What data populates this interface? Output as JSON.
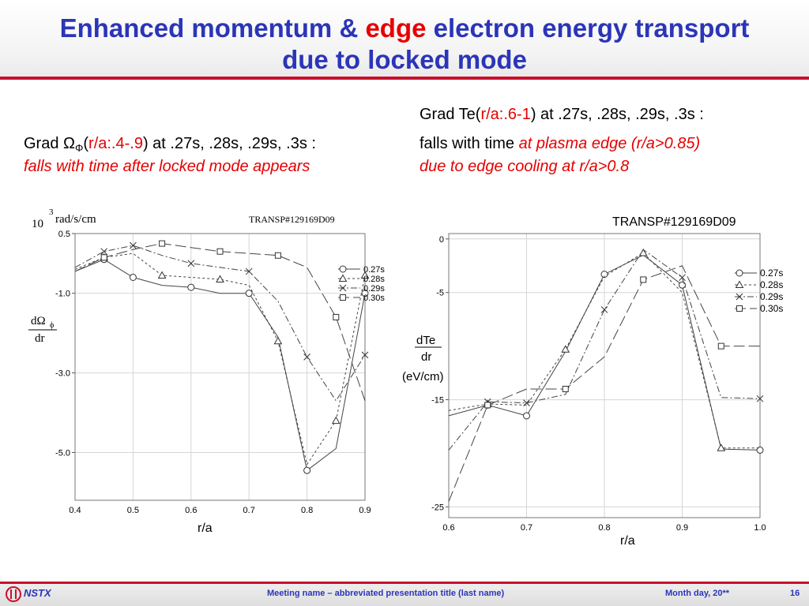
{
  "title": {
    "line1_pre": "Enhanced momentum & ",
    "line1_red": "edge",
    "line1_post": " electron energy transport",
    "line2": "due to locked mode"
  },
  "left_text": {
    "pre": "Grad Ω",
    "sub": "Φ",
    "paren_open": "(",
    "range": "r/a:.4-.9",
    "post": ") at .27s, .28s, .29s, .3s :",
    "line2": "falls with time after locked mode appears"
  },
  "right_text": {
    "pre": "Grad Te(",
    "range": "r/a:.6-1",
    "post": ") at .27s, .28s, .29s, .3s :",
    "line2_pre": "falls with time ",
    "line2_red": "at plasma edge (r/a>0.85)",
    "line3": "due to edge cooling at r/a>0.8"
  },
  "footer": {
    "logo": "NSTX",
    "meeting": "Meeting name  – abbreviated presentation title (last name)",
    "date": "Month day, 20**",
    "page": "16"
  },
  "colors": {
    "title_blue": "#2b35b8",
    "accent_red": "#c8102e",
    "highlight_red": "#e60000"
  },
  "chart_data": [
    {
      "type": "line",
      "label": "TRANSP#129169D09",
      "yunit_exp": "3",
      "yunit_pre": "10",
      "yunit_post": "rad/s/cm",
      "ylabel_num": "dΩ",
      "ylabel_sub": "ϕ",
      "ylabel_den": "dr",
      "xlabel": "r/a",
      "xlim": [
        0.4,
        0.9
      ],
      "ylim": [
        -6.2,
        0.5
      ],
      "x_ticks": [
        0.4,
        0.5,
        0.6,
        0.7,
        0.8,
        0.9
      ],
      "y_ticks": [
        0.5,
        -1.0,
        -3.0,
        -5.0
      ],
      "y_tick_labels": [
        "0.5",
        "-1.0",
        "-3.0",
        "-5.0"
      ],
      "x_tick_labels": [
        "0.4",
        "0.5",
        "0.6",
        "0.7",
        "0.8",
        "0.9"
      ],
      "series": [
        {
          "name": "0.27s",
          "marker": "circle",
          "dash": "none",
          "x": [
            0.4,
            0.45,
            0.5,
            0.55,
            0.6,
            0.65,
            0.7,
            0.75,
            0.8,
            0.85,
            0.9
          ],
          "y": [
            -0.45,
            -0.15,
            -0.6,
            -0.8,
            -0.85,
            -1.0,
            -1.0,
            -2.1,
            -5.45,
            -4.9,
            -1.0
          ],
          "mx": [
            0.45,
            0.5,
            0.6,
            0.7,
            0.8,
            0.9
          ]
        },
        {
          "name": "0.28s",
          "marker": "triangle",
          "dash": "3,3",
          "x": [
            0.4,
            0.45,
            0.5,
            0.55,
            0.6,
            0.65,
            0.7,
            0.75,
            0.8,
            0.85,
            0.9
          ],
          "y": [
            -0.4,
            -0.1,
            0.0,
            -0.55,
            -0.6,
            -0.65,
            -0.8,
            -2.2,
            -5.3,
            -4.2,
            -0.55
          ],
          "mx": [
            0.45,
            0.55,
            0.65,
            0.75,
            0.85,
            0.9
          ]
        },
        {
          "name": "0.29s",
          "marker": "x",
          "dash": "8,3,2,3",
          "x": [
            0.4,
            0.45,
            0.5,
            0.55,
            0.6,
            0.65,
            0.7,
            0.75,
            0.8,
            0.85,
            0.9
          ],
          "y": [
            -0.35,
            0.05,
            0.2,
            -0.05,
            -0.25,
            -0.35,
            -0.45,
            -1.2,
            -2.6,
            -3.7,
            -2.55
          ],
          "mx": [
            0.45,
            0.5,
            0.6,
            0.7,
            0.8,
            0.9
          ]
        },
        {
          "name": "0.30s",
          "marker": "square",
          "dash": "14,5",
          "x": [
            0.4,
            0.45,
            0.5,
            0.55,
            0.6,
            0.65,
            0.7,
            0.75,
            0.8,
            0.85,
            0.9
          ],
          "y": [
            -0.45,
            -0.1,
            0.1,
            0.25,
            0.15,
            0.05,
            0.0,
            -0.05,
            -0.35,
            -1.6,
            -3.7
          ],
          "mx": [
            0.45,
            0.55,
            0.65,
            0.75,
            0.85
          ]
        }
      ]
    },
    {
      "type": "line",
      "label": "TRANSP#129169D09",
      "ylabel_num": "dTe",
      "ylabel_den": "dr",
      "ylabel_unit": "(eV/cm)",
      "xlabel": "r/a",
      "xlim": [
        0.6,
        1.0
      ],
      "ylim": [
        -26,
        0.5
      ],
      "x_ticks": [
        0.6,
        0.7,
        0.8,
        0.9,
        1.0
      ],
      "x_tick_labels": [
        "0.6",
        "0.7",
        "0.8",
        "0.9",
        "1.0"
      ],
      "y_ticks": [
        0,
        -5,
        -15,
        -25
      ],
      "y_tick_labels": [
        "0",
        "-5",
        "-15",
        "-25"
      ],
      "series": [
        {
          "name": "0.27s",
          "marker": "circle",
          "dash": "none",
          "x": [
            0.6,
            0.65,
            0.7,
            0.75,
            0.8,
            0.85,
            0.9,
            0.95,
            1.0
          ],
          "y": [
            -16.5,
            -15.5,
            -16.5,
            -10.5,
            -3.3,
            -1.5,
            -4.3,
            -19.6,
            -19.7
          ],
          "mx": [
            0.65,
            0.7,
            0.8,
            0.9,
            1.0
          ]
        },
        {
          "name": "0.28s",
          "marker": "triangle",
          "dash": "3,3",
          "x": [
            0.6,
            0.65,
            0.7,
            0.75,
            0.8,
            0.85,
            0.9,
            0.95,
            1.0
          ],
          "y": [
            -16.0,
            -15.4,
            -15.5,
            -10.3,
            -3.5,
            -1.3,
            -5.0,
            -19.5,
            -19.5
          ],
          "mx": [
            0.65,
            0.75,
            0.85,
            0.95
          ]
        },
        {
          "name": "0.29s",
          "marker": "x",
          "dash": "8,3,2,3",
          "x": [
            0.6,
            0.65,
            0.7,
            0.75,
            0.8,
            0.85,
            0.9,
            0.95,
            1.0
          ],
          "y": [
            -19.7,
            -15.2,
            -15.3,
            -14.5,
            -6.6,
            -1.0,
            -3.6,
            -14.8,
            -14.9
          ],
          "mx": [
            0.65,
            0.7,
            0.8,
            0.9,
            1.0
          ]
        },
        {
          "name": "0.30s",
          "marker": "square",
          "dash": "14,5",
          "x": [
            0.6,
            0.65,
            0.7,
            0.75,
            0.8,
            0.85,
            0.9,
            0.95,
            1.0
          ],
          "y": [
            -24.5,
            -15.5,
            -14.0,
            -14.0,
            -11.0,
            -3.8,
            -2.5,
            -10.0,
            -10.0
          ],
          "mx": [
            0.65,
            0.75,
            0.85,
            0.95
          ]
        }
      ]
    }
  ]
}
